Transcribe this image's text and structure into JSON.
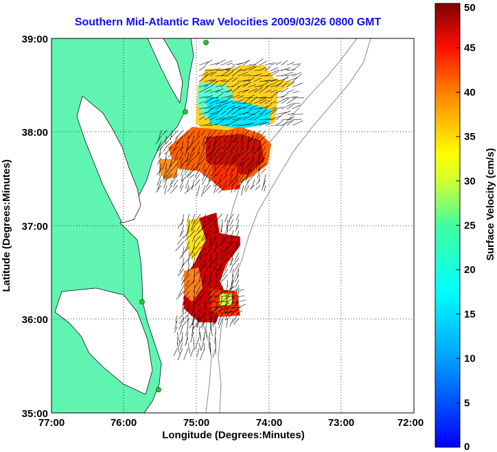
{
  "title": "Southern Mid-Atlantic Raw Velocities 2009/03/26 0800 GMT",
  "map": {
    "xlabel": "Longitude (Degrees:Minutes)",
    "ylabel": "Latitude (Degrees:Minutes)",
    "lon_ticks": [
      "77:00",
      "76:00",
      "75:00",
      "74:00",
      "73:00",
      "72:00"
    ],
    "lat_ticks": [
      "39:00",
      "38:00",
      "37:00",
      "36:00",
      "35:00"
    ],
    "lon_range": [
      -77,
      -72
    ],
    "lat_range": [
      35,
      39
    ],
    "grid": "dotted",
    "land_color": "#5ff5b0",
    "station_color": "#22cc22"
  },
  "colorbar": {
    "label": "Surface Velocity (cm/s)",
    "ticks": [
      "0",
      "5",
      "10",
      "15",
      "20",
      "25",
      "30",
      "35",
      "40",
      "45",
      "50"
    ],
    "range": [
      0,
      50
    ],
    "colormap": "jet"
  }
}
